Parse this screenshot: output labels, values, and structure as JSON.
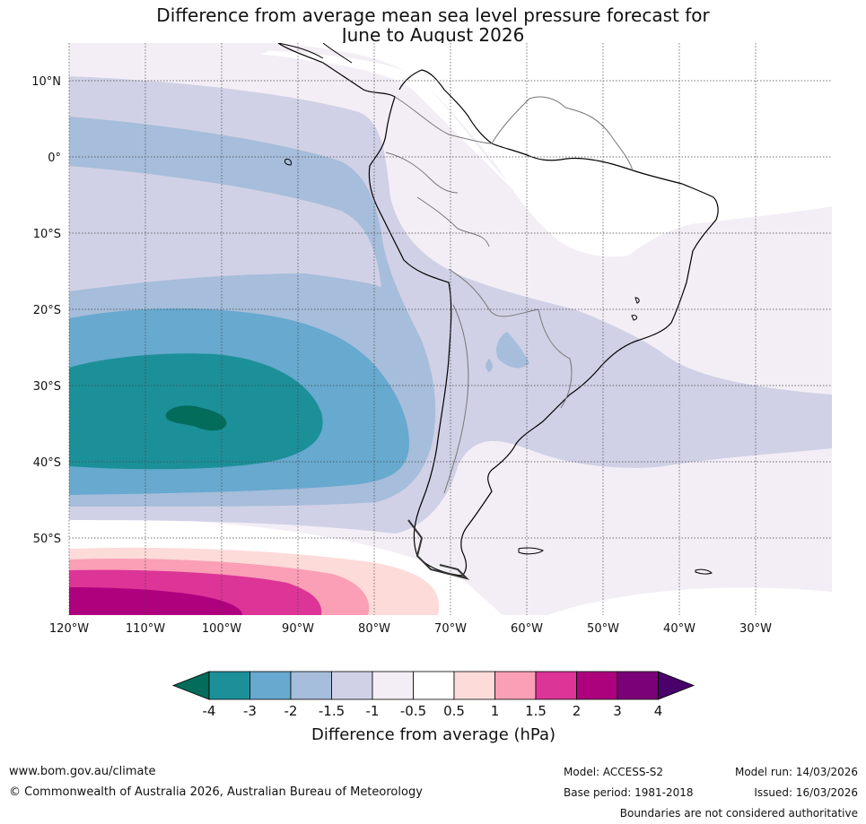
{
  "title_line1": "Difference from average mean sea level pressure forecast for",
  "title_line2": "June to August 2026",
  "lat_labels": [
    "10°N",
    "0°",
    "10°S",
    "20°S",
    "30°S",
    "40°S",
    "50°S"
  ],
  "lon_labels": [
    "120°W",
    "110°W",
    "100°W",
    "90°W",
    "80°W",
    "70°W",
    "60°W",
    "50°W",
    "40°W",
    "30°W"
  ],
  "colorbar": {
    "ticks": [
      "-4",
      "-3",
      "-2",
      "-1.5",
      "-1",
      "-0.5",
      "0.5",
      "1",
      "1.5",
      "2",
      "3",
      "4"
    ],
    "colors": [
      "#046c5a",
      "#1c9099",
      "#67a9cf",
      "#a6bddb",
      "#d0d1e6",
      "#f3eef6",
      "#ffffff",
      "#fddbd9",
      "#fa9fb5",
      "#dd3497",
      "#ae017e",
      "#7a0177",
      "#49006a"
    ],
    "label": "Difference from average (hPa)"
  },
  "footer": {
    "website": "www.bom.gov.au/climate",
    "copyright": "© Commonwealth of Australia 2026, Australian Bureau of Meteorology",
    "model": "Model: ACCESS-S2",
    "base_period": "Base period: 1981-2018",
    "model_run": "Model run: 14/03/2026",
    "issued": "Issued: 16/03/2026",
    "disclaimer": "Boundaries are not considered authoritative"
  }
}
